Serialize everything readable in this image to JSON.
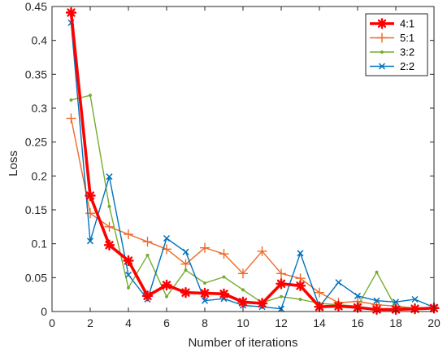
{
  "chart_data": {
    "type": "line",
    "xlabel": "Number of iterations",
    "ylabel": "Loss",
    "xlim": [
      0,
      20
    ],
    "ylim": [
      0,
      0.45
    ],
    "x_ticks": [
      "0",
      "2",
      "4",
      "6",
      "8",
      "10",
      "12",
      "14",
      "16",
      "18",
      "20"
    ],
    "y_ticks": [
      "0",
      "0.05",
      "0.1",
      "0.15",
      "0.2",
      "0.25",
      "0.3",
      "0.35",
      "0.4",
      "0.45"
    ],
    "grid": false,
    "legend_position": "top-right",
    "x": [
      1,
      2,
      3,
      4,
      5,
      6,
      7,
      8,
      9,
      10,
      11,
      12,
      13,
      14,
      15,
      16,
      17,
      18,
      19,
      20
    ],
    "series": [
      {
        "name": "4:1",
        "color": "#ff0000",
        "marker": "asterisk",
        "values": [
          0.441,
          0.171,
          0.098,
          0.075,
          0.023,
          0.039,
          0.028,
          0.027,
          0.026,
          0.014,
          0.012,
          0.041,
          0.038,
          0.007,
          0.008,
          0.006,
          0.003,
          0.003,
          0.004,
          0.005
        ]
      },
      {
        "name": "5:1",
        "color": "#ed6a2a",
        "marker": "plus",
        "values": [
          0.285,
          0.145,
          0.125,
          0.114,
          0.103,
          0.092,
          0.07,
          0.094,
          0.085,
          0.056,
          0.089,
          0.056,
          0.049,
          0.028,
          0.013,
          0.015,
          0.01,
          0.008,
          0.005,
          0.006
        ]
      },
      {
        "name": "3:2",
        "color": "#77ac30",
        "marker": "dot",
        "values": [
          0.312,
          0.319,
          0.155,
          0.035,
          0.083,
          0.022,
          0.061,
          0.042,
          0.051,
          0.032,
          0.013,
          0.022,
          0.018,
          0.012,
          0.01,
          0.008,
          0.058,
          0.006,
          0.005,
          0.004
        ]
      },
      {
        "name": "2:2",
        "color": "#0072bd",
        "marker": "x",
        "values": [
          0.426,
          0.104,
          0.199,
          0.054,
          0.018,
          0.108,
          0.088,
          0.016,
          0.019,
          0.009,
          0.007,
          0.004,
          0.086,
          0.007,
          0.043,
          0.023,
          0.016,
          0.014,
          0.018,
          0.006
        ]
      }
    ]
  }
}
